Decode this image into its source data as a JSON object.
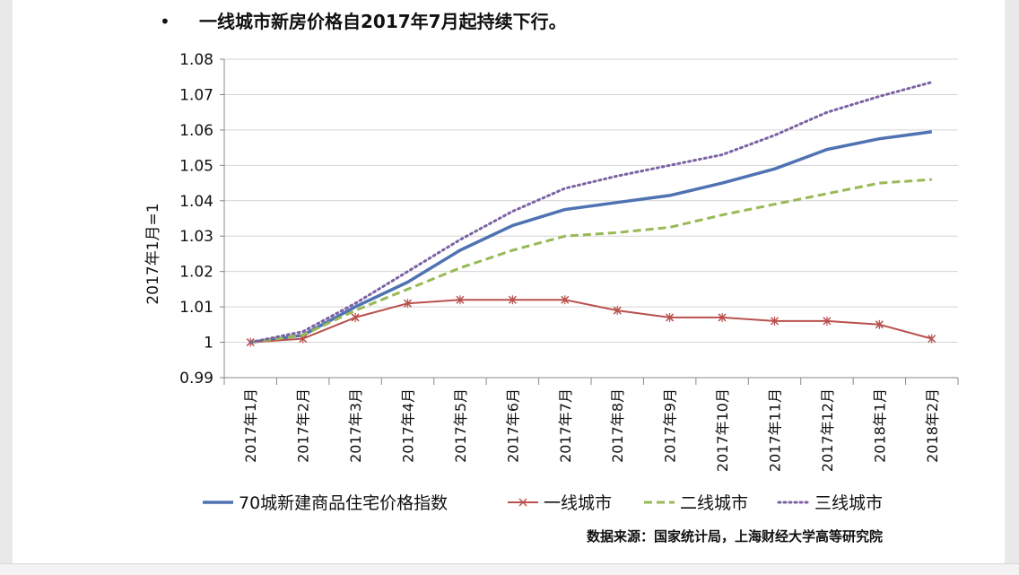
{
  "headline": {
    "bullet": "•",
    "text": "一线城市新房价格自2017年7月起持续下行。"
  },
  "source": "数据来源：国家统计局，上海财经大学高等研究院",
  "chart_data": {
    "type": "line",
    "ylabel": "2017年1月=1",
    "ylim": [
      0.99,
      1.08
    ],
    "yticks": [
      "0.99",
      "1",
      "1.01",
      "1.02",
      "1.03",
      "1.04",
      "1.05",
      "1.06",
      "1.07",
      "1.08"
    ],
    "ytick_values": [
      0.99,
      1.0,
      1.01,
      1.02,
      1.03,
      1.04,
      1.05,
      1.06,
      1.07,
      1.08
    ],
    "grid": true,
    "legend": "bottom",
    "categories": [
      "2017年1月",
      "2017年2月",
      "2017年3月",
      "2017年4月",
      "2017年5月",
      "2017年6月",
      "2017年7月",
      "2017年8月",
      "2017年9月",
      "2017年10月",
      "2017年11月",
      "2017年12月",
      "2018年1月",
      "2018年2月"
    ],
    "series": [
      {
        "name": "70城新建商品住宅价格指数",
        "color": "#4f72b2",
        "style": "solid",
        "values": [
          1.0,
          1.002,
          1.01,
          1.017,
          1.026,
          1.033,
          1.0375,
          1.0395,
          1.0415,
          1.045,
          1.049,
          1.0545,
          1.0575,
          1.0595
        ]
      },
      {
        "name": "一线城市",
        "color": "#b9514d",
        "style": "marker-x",
        "values": [
          1.0,
          1.001,
          1.007,
          1.011,
          1.012,
          1.012,
          1.012,
          1.009,
          1.007,
          1.007,
          1.006,
          1.006,
          1.005,
          1.001
        ]
      },
      {
        "name": "二线城市",
        "color": "#98b954",
        "style": "dashed",
        "values": [
          1.0,
          1.002,
          1.009,
          1.015,
          1.021,
          1.026,
          1.03,
          1.031,
          1.0325,
          1.036,
          1.039,
          1.042,
          1.045,
          1.046
        ]
      },
      {
        "name": "三线城市",
        "color": "#7b62a3",
        "style": "dotted",
        "values": [
          1.0,
          1.003,
          1.011,
          1.02,
          1.029,
          1.037,
          1.0435,
          1.047,
          1.05,
          1.053,
          1.0585,
          1.065,
          1.0695,
          1.0735
        ]
      }
    ]
  }
}
